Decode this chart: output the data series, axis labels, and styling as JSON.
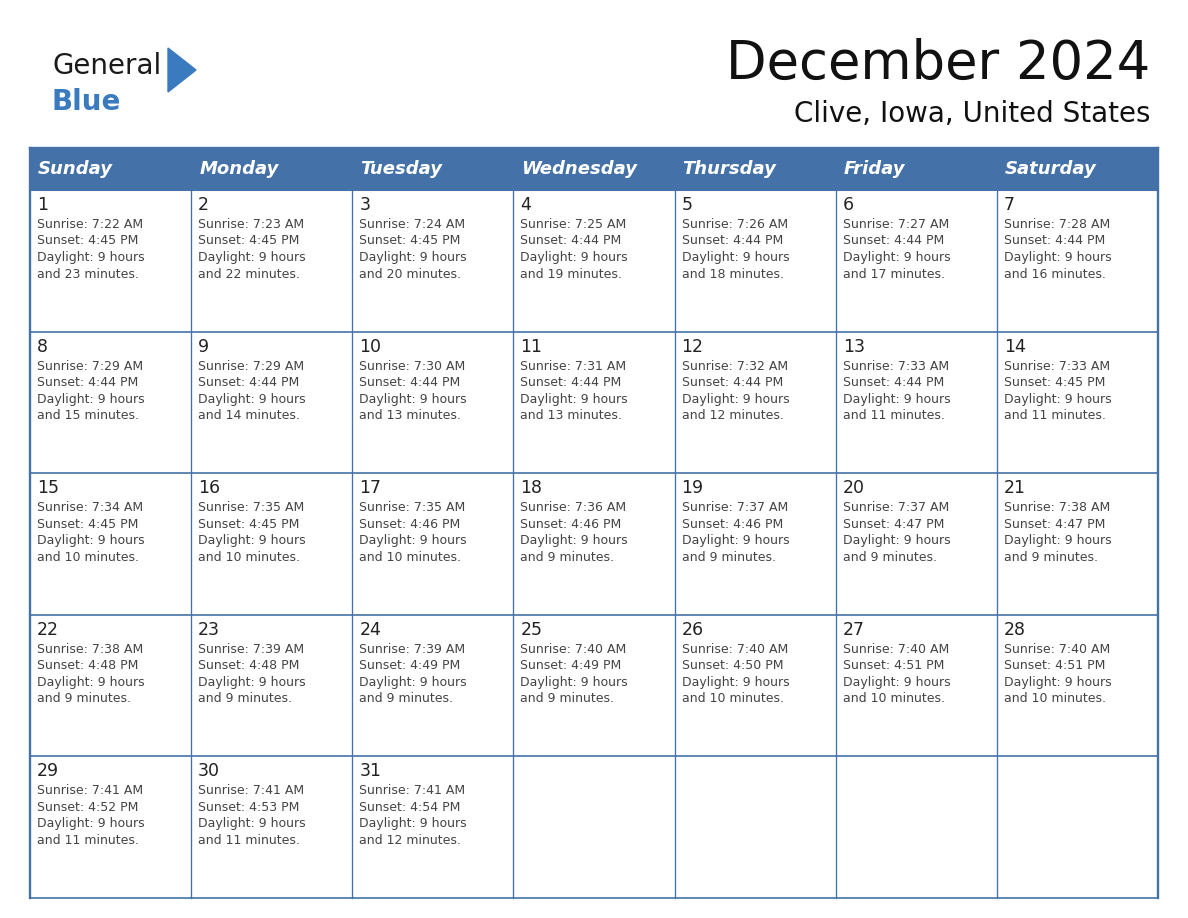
{
  "title": "December 2024",
  "subtitle": "Clive, Iowa, United States",
  "days_of_week": [
    "Sunday",
    "Monday",
    "Tuesday",
    "Wednesday",
    "Thursday",
    "Friday",
    "Saturday"
  ],
  "header_bg": "#4472A8",
  "header_text": "#FFFFFF",
  "border_color": "#4472A8",
  "text_color": "#333333",
  "logo_general_color": "#1a1a1a",
  "logo_blue_color": "#3a7abf",
  "weeks": [
    [
      {
        "day": 1,
        "sunrise": "7:22 AM",
        "sunset": "4:45 PM",
        "daylight": "9 hours\nand 23 minutes."
      },
      {
        "day": 2,
        "sunrise": "7:23 AM",
        "sunset": "4:45 PM",
        "daylight": "9 hours\nand 22 minutes."
      },
      {
        "day": 3,
        "sunrise": "7:24 AM",
        "sunset": "4:45 PM",
        "daylight": "9 hours\nand 20 minutes."
      },
      {
        "day": 4,
        "sunrise": "7:25 AM",
        "sunset": "4:44 PM",
        "daylight": "9 hours\nand 19 minutes."
      },
      {
        "day": 5,
        "sunrise": "7:26 AM",
        "sunset": "4:44 PM",
        "daylight": "9 hours\nand 18 minutes."
      },
      {
        "day": 6,
        "sunrise": "7:27 AM",
        "sunset": "4:44 PM",
        "daylight": "9 hours\nand 17 minutes."
      },
      {
        "day": 7,
        "sunrise": "7:28 AM",
        "sunset": "4:44 PM",
        "daylight": "9 hours\nand 16 minutes."
      }
    ],
    [
      {
        "day": 8,
        "sunrise": "7:29 AM",
        "sunset": "4:44 PM",
        "daylight": "9 hours\nand 15 minutes."
      },
      {
        "day": 9,
        "sunrise": "7:29 AM",
        "sunset": "4:44 PM",
        "daylight": "9 hours\nand 14 minutes."
      },
      {
        "day": 10,
        "sunrise": "7:30 AM",
        "sunset": "4:44 PM",
        "daylight": "9 hours\nand 13 minutes."
      },
      {
        "day": 11,
        "sunrise": "7:31 AM",
        "sunset": "4:44 PM",
        "daylight": "9 hours\nand 13 minutes."
      },
      {
        "day": 12,
        "sunrise": "7:32 AM",
        "sunset": "4:44 PM",
        "daylight": "9 hours\nand 12 minutes."
      },
      {
        "day": 13,
        "sunrise": "7:33 AM",
        "sunset": "4:44 PM",
        "daylight": "9 hours\nand 11 minutes."
      },
      {
        "day": 14,
        "sunrise": "7:33 AM",
        "sunset": "4:45 PM",
        "daylight": "9 hours\nand 11 minutes."
      }
    ],
    [
      {
        "day": 15,
        "sunrise": "7:34 AM",
        "sunset": "4:45 PM",
        "daylight": "9 hours\nand 10 minutes."
      },
      {
        "day": 16,
        "sunrise": "7:35 AM",
        "sunset": "4:45 PM",
        "daylight": "9 hours\nand 10 minutes."
      },
      {
        "day": 17,
        "sunrise": "7:35 AM",
        "sunset": "4:46 PM",
        "daylight": "9 hours\nand 10 minutes."
      },
      {
        "day": 18,
        "sunrise": "7:36 AM",
        "sunset": "4:46 PM",
        "daylight": "9 hours\nand 9 minutes."
      },
      {
        "day": 19,
        "sunrise": "7:37 AM",
        "sunset": "4:46 PM",
        "daylight": "9 hours\nand 9 minutes."
      },
      {
        "day": 20,
        "sunrise": "7:37 AM",
        "sunset": "4:47 PM",
        "daylight": "9 hours\nand 9 minutes."
      },
      {
        "day": 21,
        "sunrise": "7:38 AM",
        "sunset": "4:47 PM",
        "daylight": "9 hours\nand 9 minutes."
      }
    ],
    [
      {
        "day": 22,
        "sunrise": "7:38 AM",
        "sunset": "4:48 PM",
        "daylight": "9 hours\nand 9 minutes."
      },
      {
        "day": 23,
        "sunrise": "7:39 AM",
        "sunset": "4:48 PM",
        "daylight": "9 hours\nand 9 minutes."
      },
      {
        "day": 24,
        "sunrise": "7:39 AM",
        "sunset": "4:49 PM",
        "daylight": "9 hours\nand 9 minutes."
      },
      {
        "day": 25,
        "sunrise": "7:40 AM",
        "sunset": "4:49 PM",
        "daylight": "9 hours\nand 9 minutes."
      },
      {
        "day": 26,
        "sunrise": "7:40 AM",
        "sunset": "4:50 PM",
        "daylight": "9 hours\nand 10 minutes."
      },
      {
        "day": 27,
        "sunrise": "7:40 AM",
        "sunset": "4:51 PM",
        "daylight": "9 hours\nand 10 minutes."
      },
      {
        "day": 28,
        "sunrise": "7:40 AM",
        "sunset": "4:51 PM",
        "daylight": "9 hours\nand 10 minutes."
      }
    ],
    [
      {
        "day": 29,
        "sunrise": "7:41 AM",
        "sunset": "4:52 PM",
        "daylight": "9 hours\nand 11 minutes."
      },
      {
        "day": 30,
        "sunrise": "7:41 AM",
        "sunset": "4:53 PM",
        "daylight": "9 hours\nand 11 minutes."
      },
      {
        "day": 31,
        "sunrise": "7:41 AM",
        "sunset": "4:54 PM",
        "daylight": "9 hours\nand 12 minutes."
      },
      null,
      null,
      null,
      null
    ]
  ]
}
